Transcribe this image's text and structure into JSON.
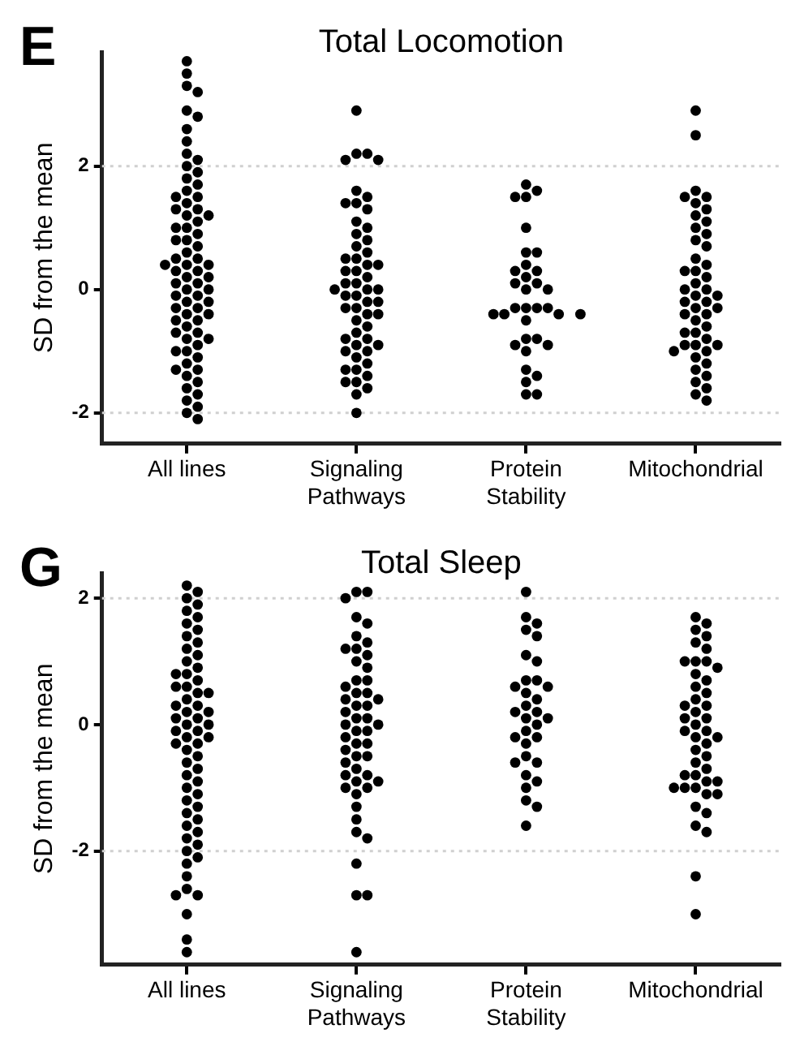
{
  "chart_data": [
    {
      "type": "scatter",
      "title": "Total Locomotion",
      "ylabel": "SD from the mean",
      "annotations": [
        "E"
      ],
      "categories": [
        "All lines",
        "Signaling\nPathways",
        "Protein\nStability",
        "Mitochondrial"
      ],
      "ylim": [
        -2.5,
        3.85
      ],
      "yticks": [
        -2,
        0,
        2
      ],
      "grid": false,
      "legend": false,
      "marker": "circle",
      "ref_lines": [
        {
          "axis": "y",
          "value": 2,
          "color": "#d0d0d0",
          "line_style": "dotted"
        },
        {
          "axis": "y",
          "value": -2,
          "color": "#d0d0d0",
          "line_style": "dotted"
        }
      ],
      "series": [
        {
          "color": "#000000",
          "x": [
            "All lines",
            "All lines",
            "All lines",
            "All lines",
            "All lines",
            "All lines",
            "All lines",
            "All lines",
            "All lines",
            "All lines",
            "All lines",
            "All lines",
            "All lines",
            "All lines",
            "All lines",
            "All lines",
            "All lines",
            "All lines",
            "All lines",
            "All lines",
            "All lines",
            "All lines",
            "All lines",
            "All lines",
            "All lines",
            "All lines",
            "All lines",
            "All lines",
            "All lines",
            "All lines",
            "All lines",
            "All lines",
            "All lines",
            "All lines",
            "All lines",
            "All lines",
            "All lines",
            "All lines",
            "All lines",
            "All lines",
            "All lines",
            "All lines",
            "All lines",
            "All lines",
            "All lines",
            "All lines",
            "All lines",
            "All lines",
            "All lines",
            "All lines",
            "All lines",
            "All lines",
            "All lines",
            "All lines",
            "All lines",
            "All lines",
            "All lines",
            "All lines",
            "All lines",
            "All lines",
            "All lines",
            "All lines",
            "All lines",
            "All lines",
            "All lines",
            "All lines",
            "All lines",
            "All lines",
            "All lines",
            "All lines",
            "All lines",
            "All lines",
            "All lines"
          ],
          "values": [
            3.7,
            3.5,
            3.3,
            3.2,
            2.9,
            2.8,
            2.6,
            2.4,
            2.2,
            2.1,
            2.0,
            1.9,
            1.8,
            1.7,
            1.6,
            1.5,
            1.5,
            1.4,
            1.3,
            1.3,
            1.2,
            1.2,
            1.1,
            1.0,
            1.0,
            0.9,
            0.8,
            0.8,
            0.7,
            0.6,
            0.5,
            0.5,
            0.4,
            0.4,
            0.4,
            0.3,
            0.3,
            0.2,
            0.2,
            0.1,
            0.1,
            0.0,
            0.0,
            -0.1,
            -0.1,
            -0.2,
            -0.2,
            -0.3,
            -0.3,
            -0.4,
            -0.4,
            -0.5,
            -0.5,
            -0.6,
            -0.7,
            -0.7,
            -0.8,
            -0.8,
            -0.9,
            -1.0,
            -1.0,
            -1.1,
            -1.2,
            -1.3,
            -1.3,
            -1.4,
            -1.5,
            -1.6,
            -1.7,
            -1.8,
            -1.9,
            -2.0,
            -2.1
          ]
        },
        {
          "color": "#000000",
          "x": [
            "Signaling\nPathways",
            "Signaling\nPathways",
            "Signaling\nPathways",
            "Signaling\nPathways",
            "Signaling\nPathways",
            "Signaling\nPathways",
            "Signaling\nPathways",
            "Signaling\nPathways",
            "Signaling\nPathways",
            "Signaling\nPathways",
            "Signaling\nPathways",
            "Signaling\nPathways",
            "Signaling\nPathways",
            "Signaling\nPathways",
            "Signaling\nPathways",
            "Signaling\nPathways",
            "Signaling\nPathways",
            "Signaling\nPathways",
            "Signaling\nPathways",
            "Signaling\nPathways",
            "Signaling\nPathways",
            "Signaling\nPathways",
            "Signaling\nPathways",
            "Signaling\nPathways",
            "Signaling\nPathways",
            "Signaling\nPathways",
            "Signaling\nPathways",
            "Signaling\nPathways",
            "Signaling\nPathways",
            "Signaling\nPathways",
            "Signaling\nPathways",
            "Signaling\nPathways",
            "Signaling\nPathways",
            "Signaling\nPathways",
            "Signaling\nPathways",
            "Signaling\nPathways",
            "Signaling\nPathways",
            "Signaling\nPathways",
            "Signaling\nPathways",
            "Signaling\nPathways",
            "Signaling\nPathways",
            "Signaling\nPathways",
            "Signaling\nPathways",
            "Signaling\nPathways",
            "Signaling\nPathways",
            "Signaling\nPathways",
            "Signaling\nPathways",
            "Signaling\nPathways",
            "Signaling\nPathways",
            "Signaling\nPathways",
            "Signaling\nPathways",
            "Signaling\nPathways",
            "Signaling\nPathways",
            "Signaling\nPathways",
            "Signaling\nPathways"
          ],
          "values": [
            2.9,
            2.2,
            2.2,
            2.1,
            2.1,
            1.6,
            1.5,
            1.4,
            1.4,
            1.3,
            1.1,
            1.0,
            0.9,
            0.8,
            0.7,
            0.6,
            0.5,
            0.5,
            0.4,
            0.4,
            0.3,
            0.3,
            0.2,
            0.1,
            0.1,
            0.0,
            0.0,
            0.0,
            -0.1,
            -0.1,
            -0.2,
            -0.2,
            -0.3,
            -0.3,
            -0.4,
            -0.4,
            -0.5,
            -0.6,
            -0.7,
            -0.8,
            -0.8,
            -0.9,
            -0.9,
            -1.0,
            -1.0,
            -1.1,
            -1.2,
            -1.3,
            -1.3,
            -1.4,
            -1.5,
            -1.5,
            -1.6,
            -1.7,
            -2.0
          ]
        },
        {
          "color": "#000000",
          "x": [
            "Protein\nStability",
            "Protein\nStability",
            "Protein\nStability",
            "Protein\nStability",
            "Protein\nStability",
            "Protein\nStability",
            "Protein\nStability",
            "Protein\nStability",
            "Protein\nStability",
            "Protein\nStability",
            "Protein\nStability",
            "Protein\nStability",
            "Protein\nStability",
            "Protein\nStability",
            "Protein\nStability",
            "Protein\nStability",
            "Protein\nStability",
            "Protein\nStability",
            "Protein\nStability",
            "Protein\nStability",
            "Protein\nStability",
            "Protein\nStability",
            "Protein\nStability",
            "Protein\nStability",
            "Protein\nStability",
            "Protein\nStability",
            "Protein\nStability",
            "Protein\nStability",
            "Protein\nStability",
            "Protein\nStability",
            "Protein\nStability",
            "Protein\nStability",
            "Protein\nStability",
            "Protein\nStability"
          ],
          "values": [
            1.7,
            1.6,
            1.5,
            1.5,
            1.0,
            0.6,
            0.6,
            0.4,
            0.3,
            0.3,
            0.2,
            0.1,
            0.1,
            0.0,
            0.0,
            -0.3,
            -0.3,
            -0.3,
            -0.3,
            -0.4,
            -0.4,
            -0.4,
            -0.4,
            -0.5,
            -0.8,
            -0.8,
            -0.9,
            -0.9,
            -1.0,
            -1.3,
            -1.4,
            -1.5,
            -1.7,
            -1.7
          ]
        },
        {
          "color": "#000000",
          "x": [
            "Mitochondrial",
            "Mitochondrial",
            "Mitochondrial",
            "Mitochondrial",
            "Mitochondrial",
            "Mitochondrial",
            "Mitochondrial",
            "Mitochondrial",
            "Mitochondrial",
            "Mitochondrial",
            "Mitochondrial",
            "Mitochondrial",
            "Mitochondrial",
            "Mitochondrial",
            "Mitochondrial",
            "Mitochondrial",
            "Mitochondrial",
            "Mitochondrial",
            "Mitochondrial",
            "Mitochondrial",
            "Mitochondrial",
            "Mitochondrial",
            "Mitochondrial",
            "Mitochondrial",
            "Mitochondrial",
            "Mitochondrial",
            "Mitochondrial",
            "Mitochondrial",
            "Mitochondrial",
            "Mitochondrial",
            "Mitochondrial",
            "Mitochondrial",
            "Mitochondrial",
            "Mitochondrial",
            "Mitochondrial",
            "Mitochondrial",
            "Mitochondrial",
            "Mitochondrial",
            "Mitochondrial",
            "Mitochondrial",
            "Mitochondrial",
            "Mitochondrial",
            "Mitochondrial",
            "Mitochondrial",
            "Mitochondrial",
            "Mitochondrial",
            "Mitochondrial"
          ],
          "values": [
            2.9,
            2.5,
            1.6,
            1.5,
            1.5,
            1.4,
            1.3,
            1.2,
            1.1,
            1.0,
            0.9,
            0.8,
            0.7,
            0.5,
            0.4,
            0.3,
            0.3,
            0.2,
            0.1,
            0.0,
            0.0,
            -0.1,
            -0.1,
            -0.2,
            -0.2,
            -0.3,
            -0.3,
            -0.4,
            -0.4,
            -0.5,
            -0.6,
            -0.7,
            -0.7,
            -0.8,
            -0.9,
            -0.9,
            -0.9,
            -1.0,
            -1.0,
            -1.1,
            -1.2,
            -1.3,
            -1.4,
            -1.5,
            -1.6,
            -1.7,
            -1.8
          ]
        }
      ]
    },
    {
      "type": "scatter",
      "title": "Total Sleep",
      "ylabel": "SD from the mean",
      "annotations": [
        "G"
      ],
      "categories": [
        "All lines",
        "Signaling\nPathways",
        "Protein\nStability",
        "Mitochondrial"
      ],
      "ylim": [
        -3.8,
        2.4
      ],
      "yticks": [
        -2,
        0,
        2
      ],
      "grid": false,
      "legend": false,
      "marker": "circle",
      "ref_lines": [
        {
          "axis": "y",
          "value": 2,
          "color": "#d0d0d0",
          "line_style": "dotted"
        },
        {
          "axis": "y",
          "value": -2,
          "color": "#d0d0d0",
          "line_style": "dotted"
        }
      ],
      "series": [
        {
          "color": "#000000",
          "x": [
            "All lines",
            "All lines",
            "All lines",
            "All lines",
            "All lines",
            "All lines",
            "All lines",
            "All lines",
            "All lines",
            "All lines",
            "All lines",
            "All lines",
            "All lines",
            "All lines",
            "All lines",
            "All lines",
            "All lines",
            "All lines",
            "All lines",
            "All lines",
            "All lines",
            "All lines",
            "All lines",
            "All lines",
            "All lines",
            "All lines",
            "All lines",
            "All lines",
            "All lines",
            "All lines",
            "All lines",
            "All lines",
            "All lines",
            "All lines",
            "All lines",
            "All lines",
            "All lines",
            "All lines",
            "All lines",
            "All lines",
            "All lines",
            "All lines",
            "All lines",
            "All lines",
            "All lines",
            "All lines",
            "All lines",
            "All lines",
            "All lines",
            "All lines",
            "All lines",
            "All lines",
            "All lines",
            "All lines",
            "All lines",
            "All lines",
            "All lines",
            "All lines",
            "All lines",
            "All lines",
            "All lines",
            "All lines"
          ],
          "values": [
            2.2,
            2.1,
            2.0,
            1.9,
            1.8,
            1.7,
            1.6,
            1.5,
            1.4,
            1.3,
            1.2,
            1.1,
            1.0,
            0.9,
            0.8,
            0.8,
            0.7,
            0.6,
            0.6,
            0.5,
            0.5,
            0.4,
            0.3,
            0.3,
            0.2,
            0.2,
            0.1,
            0.1,
            0.0,
            0.0,
            -0.1,
            -0.1,
            -0.2,
            -0.2,
            -0.3,
            -0.3,
            -0.4,
            -0.5,
            -0.6,
            -0.7,
            -0.8,
            -0.9,
            -1.0,
            -1.1,
            -1.2,
            -1.3,
            -1.4,
            -1.5,
            -1.6,
            -1.7,
            -1.8,
            -1.9,
            -2.0,
            -2.1,
            -2.2,
            -2.4,
            -2.6,
            -2.7,
            -2.7,
            -3.0,
            -3.4,
            -3.6
          ]
        },
        {
          "color": "#000000",
          "x": [
            "Signaling\nPathways",
            "Signaling\nPathways",
            "Signaling\nPathways",
            "Signaling\nPathways",
            "Signaling\nPathways",
            "Signaling\nPathways",
            "Signaling\nPathways",
            "Signaling\nPathways",
            "Signaling\nPathways",
            "Signaling\nPathways",
            "Signaling\nPathways",
            "Signaling\nPathways",
            "Signaling\nPathways",
            "Signaling\nPathways",
            "Signaling\nPathways",
            "Signaling\nPathways",
            "Signaling\nPathways",
            "Signaling\nPathways",
            "Signaling\nPathways",
            "Signaling\nPathways",
            "Signaling\nPathways",
            "Signaling\nPathways",
            "Signaling\nPathways",
            "Signaling\nPathways",
            "Signaling\nPathways",
            "Signaling\nPathways",
            "Signaling\nPathways",
            "Signaling\nPathways",
            "Signaling\nPathways",
            "Signaling\nPathways",
            "Signaling\nPathways",
            "Signaling\nPathways",
            "Signaling\nPathways",
            "Signaling\nPathways",
            "Signaling\nPathways",
            "Signaling\nPathways",
            "Signaling\nPathways",
            "Signaling\nPathways",
            "Signaling\nPathways",
            "Signaling\nPathways",
            "Signaling\nPathways",
            "Signaling\nPathways",
            "Signaling\nPathways",
            "Signaling\nPathways",
            "Signaling\nPathways",
            "Signaling\nPathways",
            "Signaling\nPathways",
            "Signaling\nPathways",
            "Signaling\nPathways",
            "Signaling\nPathways",
            "Signaling\nPathways"
          ],
          "values": [
            2.1,
            2.1,
            2.0,
            1.7,
            1.6,
            1.4,
            1.3,
            1.2,
            1.2,
            1.1,
            1.0,
            0.9,
            0.7,
            0.7,
            0.6,
            0.5,
            0.5,
            0.4,
            0.4,
            0.3,
            0.3,
            0.2,
            0.1,
            0.1,
            0.0,
            0.0,
            -0.1,
            -0.1,
            -0.2,
            -0.3,
            -0.3,
            -0.4,
            -0.5,
            -0.5,
            -0.6,
            -0.7,
            -0.8,
            -0.8,
            -0.9,
            -0.9,
            -1.0,
            -1.0,
            -1.1,
            -1.3,
            -1.5,
            -1.7,
            -1.8,
            -2.2,
            -2.7,
            -2.7,
            -3.6
          ]
        },
        {
          "color": "#000000",
          "x": [
            "Protein\nStability",
            "Protein\nStability",
            "Protein\nStability",
            "Protein\nStability",
            "Protein\nStability",
            "Protein\nStability",
            "Protein\nStability",
            "Protein\nStability",
            "Protein\nStability",
            "Protein\nStability",
            "Protein\nStability",
            "Protein\nStability",
            "Protein\nStability",
            "Protein\nStability",
            "Protein\nStability",
            "Protein\nStability",
            "Protein\nStability",
            "Protein\nStability",
            "Protein\nStability",
            "Protein\nStability",
            "Protein\nStability",
            "Protein\nStability",
            "Protein\nStability",
            "Protein\nStability",
            "Protein\nStability",
            "Protein\nStability",
            "Protein\nStability",
            "Protein\nStability",
            "Protein\nStability",
            "Protein\nStability",
            "Protein\nStability",
            "Protein\nStability"
          ],
          "values": [
            2.1,
            1.7,
            1.6,
            1.5,
            1.4,
            1.1,
            1.0,
            0.7,
            0.7,
            0.6,
            0.6,
            0.5,
            0.4,
            0.3,
            0.2,
            0.2,
            0.1,
            0.1,
            0.0,
            -0.1,
            -0.2,
            -0.2,
            -0.3,
            -0.5,
            -0.6,
            -0.6,
            -0.8,
            -0.9,
            -1.0,
            -1.2,
            -1.3,
            -1.6
          ]
        },
        {
          "color": "#000000",
          "x": [
            "Mitochondrial",
            "Mitochondrial",
            "Mitochondrial",
            "Mitochondrial",
            "Mitochondrial",
            "Mitochondrial",
            "Mitochondrial",
            "Mitochondrial",
            "Mitochondrial",
            "Mitochondrial",
            "Mitochondrial",
            "Mitochondrial",
            "Mitochondrial",
            "Mitochondrial",
            "Mitochondrial",
            "Mitochondrial",
            "Mitochondrial",
            "Mitochondrial",
            "Mitochondrial",
            "Mitochondrial",
            "Mitochondrial",
            "Mitochondrial",
            "Mitochondrial",
            "Mitochondrial",
            "Mitochondrial",
            "Mitochondrial",
            "Mitochondrial",
            "Mitochondrial",
            "Mitochondrial",
            "Mitochondrial",
            "Mitochondrial",
            "Mitochondrial",
            "Mitochondrial",
            "Mitochondrial",
            "Mitochondrial",
            "Mitochondrial",
            "Mitochondrial",
            "Mitochondrial",
            "Mitochondrial",
            "Mitochondrial",
            "Mitochondrial",
            "Mitochondrial",
            "Mitochondrial",
            "Mitochondrial",
            "Mitochondrial"
          ],
          "values": [
            1.7,
            1.6,
            1.5,
            1.4,
            1.3,
            1.2,
            1.0,
            1.0,
            1.0,
            0.9,
            0.8,
            0.7,
            0.6,
            0.5,
            0.4,
            0.3,
            0.3,
            0.2,
            0.1,
            0.1,
            0.0,
            -0.1,
            -0.1,
            -0.2,
            -0.2,
            -0.3,
            -0.4,
            -0.5,
            -0.6,
            -0.7,
            -0.8,
            -0.8,
            -0.9,
            -0.9,
            -1.0,
            -1.0,
            -1.0,
            -1.1,
            -1.1,
            -1.3,
            -1.4,
            -1.6,
            -1.7,
            -2.4,
            -3.0
          ]
        }
      ]
    }
  ]
}
